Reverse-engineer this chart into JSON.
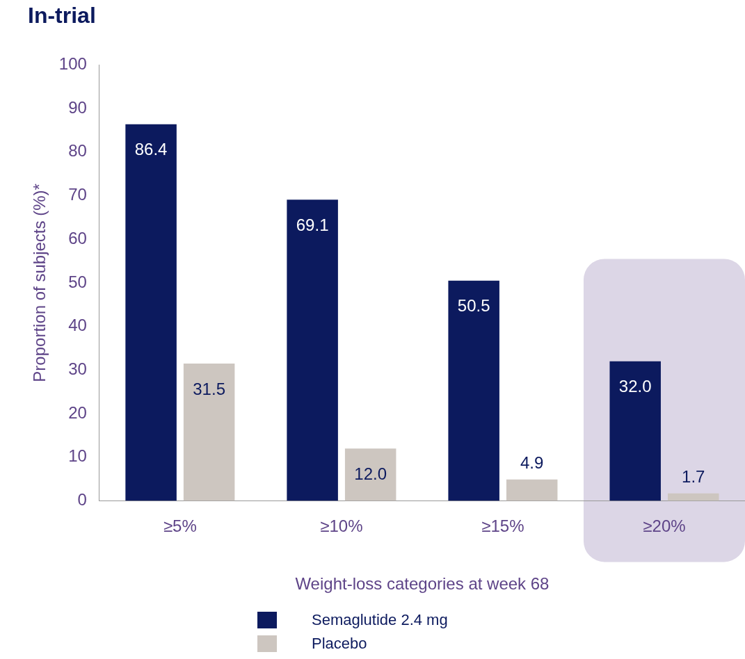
{
  "chart_data": {
    "type": "bar",
    "title": "In-trial",
    "xlabel": "Weight-loss categories at week 68",
    "ylabel": "Proportion of subjects (%)*",
    "categories": [
      "≥5%",
      "≥10%",
      "≥15%",
      "≥20%"
    ],
    "series": [
      {
        "name": "Semaglutide 2.4 mg",
        "color": "#0c1a5e",
        "values": [
          86.4,
          69.1,
          50.5,
          32.0
        ],
        "value_labels": [
          "86.4",
          "69.1",
          "50.5",
          "32.0"
        ]
      },
      {
        "name": "Placebo",
        "color": "#cdc6c0",
        "values": [
          31.5,
          12.0,
          4.9,
          1.7
        ],
        "value_labels": [
          "31.5",
          "12.0",
          "4.9",
          "1.7"
        ]
      }
    ],
    "ylim": [
      0,
      100
    ],
    "yticks": [
      0,
      10,
      20,
      30,
      40,
      50,
      60,
      70,
      80,
      90,
      100
    ],
    "grid": false,
    "legend": "bottom",
    "bands": [
      {
        "axis": "x",
        "from": "≥20%",
        "to": "≥20%",
        "color": "#dcd6e6"
      }
    ]
  }
}
